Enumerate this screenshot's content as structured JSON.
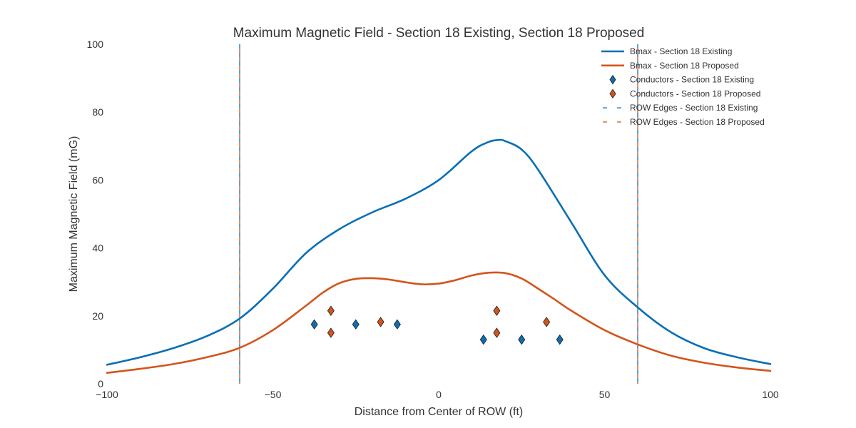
{
  "chart_data": {
    "type": "line",
    "title": "Maximum Magnetic Field - Section 18 Existing, Section 18 Proposed",
    "xlabel": "Distance from Center of ROW (ft)",
    "ylabel": "Maximum Magnetic Field (mG)",
    "xlim": [
      -100,
      100
    ],
    "ylim": [
      0,
      100
    ],
    "xticks": [
      -100,
      -50,
      0,
      50,
      100
    ],
    "xtick_labels": [
      "−100",
      "−50",
      "0",
      "50",
      "100"
    ],
    "yticks": [
      0,
      20,
      40,
      60,
      80,
      100
    ],
    "ytick_labels": [
      "0",
      "20",
      "40",
      "60",
      "80",
      "100"
    ],
    "grid": false,
    "legend_position": "top-right",
    "series": [
      {
        "name": "Bmax - Section 18 Existing",
        "kind": "line",
        "color": "#0a6fb5",
        "x": [
          -100,
          -90,
          -80,
          -70,
          -60,
          -50,
          -40,
          -30,
          -20,
          -10,
          0,
          10,
          15,
          18,
          20,
          25,
          30,
          40,
          50,
          60,
          70,
          80,
          90,
          100
        ],
        "y": [
          5.6,
          7.8,
          10.5,
          14.0,
          19.2,
          28.0,
          38.5,
          45.5,
          50.5,
          54.5,
          60.0,
          68.5,
          71.2,
          71.8,
          71.5,
          69.0,
          63.0,
          47.5,
          32.0,
          22.5,
          15.2,
          10.5,
          7.8,
          5.8
        ]
      },
      {
        "name": "Bmax - Section 18 Proposed",
        "kind": "line",
        "color": "#d4541c",
        "x": [
          -100,
          -90,
          -80,
          -70,
          -60,
          -50,
          -40,
          -35,
          -30,
          -25,
          -20,
          -15,
          -10,
          -5,
          0,
          5,
          10,
          15,
          20,
          25,
          30,
          35,
          40,
          50,
          60,
          70,
          80,
          90,
          100
        ],
        "y": [
          3.2,
          4.4,
          5.8,
          7.8,
          10.6,
          15.8,
          23.0,
          26.8,
          29.6,
          30.9,
          31.1,
          30.7,
          29.9,
          29.3,
          29.5,
          30.5,
          31.9,
          32.7,
          32.6,
          31.0,
          28.0,
          24.8,
          21.5,
          15.8,
          11.6,
          8.3,
          6.2,
          4.8,
          3.8
        ]
      },
      {
        "name": "Conductors - Section 18 Existing",
        "kind": "scatter",
        "marker": "diamond",
        "color": "#0a6fb5",
        "x": [
          -37.5,
          -25,
          -12.5,
          13.5,
          25,
          36.5
        ],
        "y": [
          17.5,
          17.5,
          17.5,
          13.0,
          13.0,
          13.0
        ]
      },
      {
        "name": "Conductors - Section 18 Proposed",
        "kind": "scatter",
        "marker": "diamond",
        "color": "#d4541c",
        "x": [
          -32.5,
          -32.5,
          -17.5,
          17.5,
          17.5,
          32.5
        ],
        "y": [
          21.5,
          15.0,
          18.2,
          21.5,
          15.0,
          18.2
        ]
      },
      {
        "name": "ROW Edges - Section 18 Existing",
        "kind": "vline",
        "dash": "dashed",
        "color": "#0a6fb5",
        "x": [
          -60,
          60
        ]
      },
      {
        "name": "ROW Edges - Section 18 Proposed",
        "kind": "vline",
        "dash": "dashed",
        "color": "#d4541c",
        "x": [
          -60,
          60
        ]
      }
    ]
  }
}
